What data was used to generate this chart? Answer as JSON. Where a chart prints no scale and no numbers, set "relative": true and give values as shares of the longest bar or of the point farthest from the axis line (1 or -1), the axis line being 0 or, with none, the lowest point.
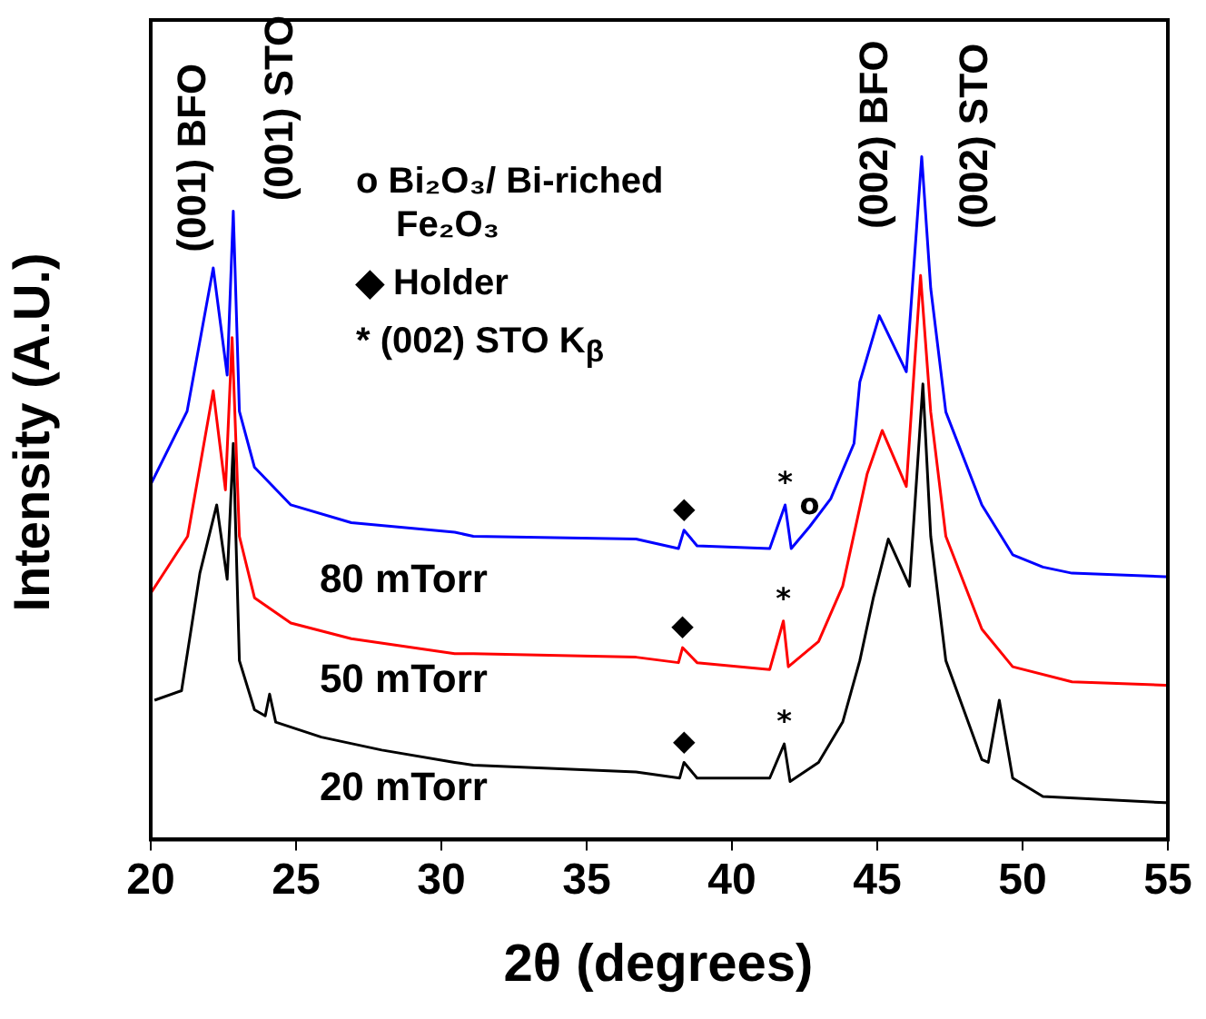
{
  "chart_data": {
    "type": "line",
    "xlabel": "2θ (degrees)",
    "ylabel": "Intensity (A.U.)",
    "relative": true,
    "marker": "none",
    "line_style": "solid",
    "xlim": [
      20,
      55
    ],
    "xticks": [
      20,
      25,
      30,
      35,
      40,
      45,
      50,
      55
    ],
    "series": [
      {
        "name": "80 mTorr",
        "color": "#0000ff",
        "x": [
          20,
          21.25,
          22.15,
          22.63,
          22.84,
          23.05,
          23.57,
          24.82,
          26.9,
          30.46,
          31.1,
          36.7,
          38.16,
          38.35,
          38.8,
          41.3,
          41.83,
          42.04,
          42.67,
          43.4,
          44.2,
          44.4,
          45.07,
          46.0,
          46.53,
          46.84,
          47.36,
          48.6,
          49.66,
          50.7,
          51.7,
          54.9,
          55
        ],
        "values": [
          0.52,
          0.627,
          0.837,
          0.68,
          0.92,
          0.627,
          0.545,
          0.49,
          0.464,
          0.45,
          0.444,
          0.44,
          0.426,
          0.453,
          0.43,
          0.426,
          0.49,
          0.426,
          0.458,
          0.499,
          0.58,
          0.67,
          0.767,
          0.685,
          1,
          0.807,
          0.626,
          0.49,
          0.417,
          0.399,
          0.39,
          0.385,
          0.385
        ]
      },
      {
        "name": "50 mTorr",
        "color": "#ff0000",
        "x": [
          20.02,
          21.27,
          22.15,
          22.57,
          22.8,
          23.05,
          23.57,
          24.82,
          26.9,
          30.46,
          31.1,
          36.7,
          38.16,
          38.3,
          38.8,
          41.3,
          41.77,
          41.94,
          42.98,
          43.81,
          44.65,
          45.17,
          46.0,
          46.49,
          46.84,
          47.36,
          48.6,
          49.66,
          51.7,
          54.9,
          55
        ],
        "values": [
          0.362,
          0.444,
          0.657,
          0.512,
          0.735,
          0.444,
          0.354,
          0.317,
          0.294,
          0.272,
          0.272,
          0.267,
          0.259,
          0.281,
          0.259,
          0.249,
          0.32,
          0.253,
          0.29,
          0.371,
          0.535,
          0.599,
          0.517,
          0.826,
          0.626,
          0.444,
          0.308,
          0.253,
          0.231,
          0.226,
          0.226
        ]
      },
      {
        "name": "20 mTorr",
        "color": "#000000",
        "x": [
          20.13,
          21.06,
          21.69,
          22.27,
          22.63,
          22.84,
          23.05,
          23.57,
          23.94,
          24.09,
          24.3,
          25.87,
          27.95,
          30.46,
          31.1,
          36.7,
          38.2,
          38.35,
          38.8,
          41.3,
          41.8,
          42.0,
          42.98,
          43.81,
          44.4,
          44.86,
          45.38,
          46.11,
          46.57,
          46.84,
          47.36,
          48.6,
          48.82,
          49.2,
          49.66,
          50.7,
          54.9,
          55
        ],
        "values": [
          0.204,
          0.218,
          0.39,
          0.49,
          0.381,
          0.58,
          0.262,
          0.19,
          0.181,
          0.213,
          0.172,
          0.15,
          0.131,
          0.113,
          0.109,
          0.099,
          0.09,
          0.113,
          0.09,
          0.09,
          0.14,
          0.085,
          0.113,
          0.172,
          0.262,
          0.353,
          0.44,
          0.371,
          0.667,
          0.444,
          0.262,
          0.117,
          0.113,
          0.204,
          0.09,
          0.063,
          0.054,
          0.054
        ]
      }
    ],
    "annotations": [
      "(001) BFO",
      "(001) STO",
      "(002) BFO",
      "(002) STO",
      {
        "text": "◆",
        "x": 38.35,
        "y": 0.453
      },
      {
        "text": "◆",
        "x": 38.3,
        "y": 0.281
      },
      {
        "text": "◆",
        "x": 38.35,
        "y": 0.113
      },
      {
        "text": "*",
        "x": 41.83,
        "y": 0.49
      },
      {
        "text": "*",
        "x": 41.77,
        "y": 0.32
      },
      {
        "text": "*",
        "x": 41.8,
        "y": 0.14
      },
      {
        "text": "o",
        "x": 42.67,
        "y": 0.458
      },
      "o Bi₂O₃/ Bi-riched Fe₂O₃",
      "◆ Holder",
      "* (002) STO K$_{β}$"
    ]
  }
}
